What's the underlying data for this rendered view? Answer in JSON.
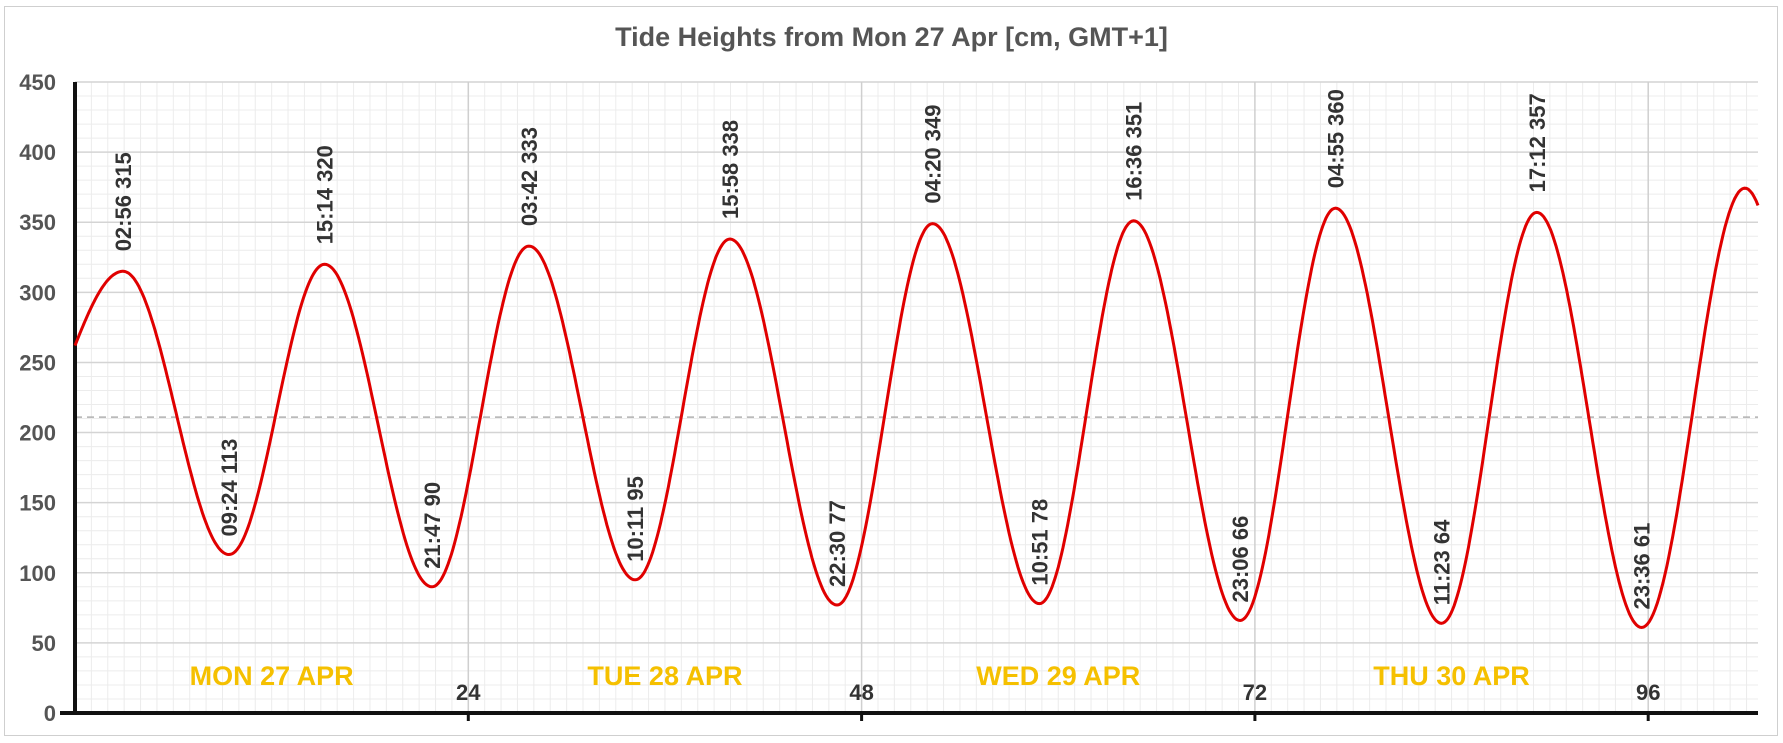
{
  "chart_data": {
    "type": "line",
    "title": "Tide Heights from Mon 27 Apr [cm, GMT+1]",
    "xlabel": "",
    "ylabel": "",
    "xlim": [
      0,
      102.7
    ],
    "ylim": [
      0,
      450
    ],
    "y_ticks": [
      0,
      50,
      100,
      150,
      200,
      250,
      300,
      350,
      400,
      450
    ],
    "x_ticks": [
      24,
      48,
      72,
      96
    ],
    "mean_level": 211,
    "grid": true,
    "line_color": "#e00000",
    "start": {
      "x": 0,
      "y": 262
    },
    "end": {
      "x": 102.7,
      "y": 362
    },
    "day_labels": [
      {
        "text": "MON 27 APR",
        "x": 12
      },
      {
        "text": "TUE 28 APR",
        "x": 36
      },
      {
        "text": "WED 29 APR",
        "x": 60
      },
      {
        "text": "THU 30 APR",
        "x": 84
      }
    ],
    "day_label_color": "#f5c000",
    "extremes": [
      {
        "time": "02:56",
        "hour": 2.933,
        "value": 315,
        "kind": "high"
      },
      {
        "time": "09:24",
        "hour": 9.4,
        "value": 113,
        "kind": "low"
      },
      {
        "time": "15:14",
        "hour": 15.233,
        "value": 320,
        "kind": "high"
      },
      {
        "time": "21:47",
        "hour": 21.783,
        "value": 90,
        "kind": "low"
      },
      {
        "time": "03:42",
        "hour": 27.7,
        "value": 333,
        "kind": "high"
      },
      {
        "time": "10:11",
        "hour": 34.183,
        "value": 95,
        "kind": "low"
      },
      {
        "time": "15:58",
        "hour": 39.967,
        "value": 338,
        "kind": "high"
      },
      {
        "time": "22:30",
        "hour": 46.5,
        "value": 77,
        "kind": "low"
      },
      {
        "time": "04:20",
        "hour": 52.333,
        "value": 349,
        "kind": "high"
      },
      {
        "time": "10:51",
        "hour": 58.85,
        "value": 78,
        "kind": "low"
      },
      {
        "time": "16:36",
        "hour": 64.6,
        "value": 351,
        "kind": "high"
      },
      {
        "time": "23:06",
        "hour": 71.1,
        "value": 66,
        "kind": "low"
      },
      {
        "time": "04:55",
        "hour": 76.917,
        "value": 360,
        "kind": "high"
      },
      {
        "time": "11:23",
        "hour": 83.383,
        "value": 64,
        "kind": "low"
      },
      {
        "time": "17:12",
        "hour": 89.2,
        "value": 357,
        "kind": "high"
      },
      {
        "time": "23:36",
        "hour": 95.6,
        "value": 61,
        "kind": "low"
      }
    ]
  }
}
